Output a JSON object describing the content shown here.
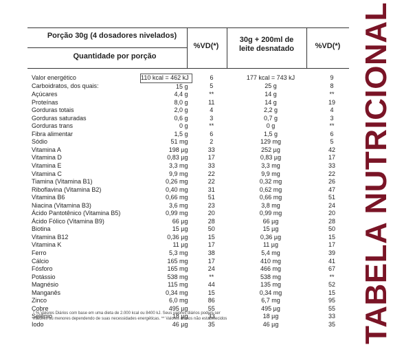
{
  "title": "TABELA NUTRICIONAL",
  "header": {
    "portion": "Porção 30g (4 dosadores nivelados)",
    "quantity": "Quantidade por porção",
    "vd1": "%VD(*)",
    "milk_line1": "30g + 200ml de",
    "milk_line2": "leite desnatado",
    "vd2": "%VD(*)"
  },
  "rows": [
    {
      "name": "Valor energético",
      "v1": "110 kcal = 462 kJ",
      "vd1": "6",
      "v2": "177 kcal = 743 kJ",
      "vd2": "9"
    },
    {
      "name": "Carboidratos, dos quais:",
      "v1": "15 g",
      "vd1": "5",
      "v2": "25 g",
      "vd2": "8"
    },
    {
      "name": "Açúcares",
      "v1": "4,4 g",
      "vd1": "**",
      "v2": "14 g",
      "vd2": "**"
    },
    {
      "name": "Proteínas",
      "v1": "8,0 g",
      "vd1": "11",
      "v2": "14 g",
      "vd2": "19"
    },
    {
      "name": "Gorduras totais",
      "v1": "2,0 g",
      "vd1": "4",
      "v2": "2,2 g",
      "vd2": "4"
    },
    {
      "name": "Gorduras saturadas",
      "v1": "0,6 g",
      "vd1": "3",
      "v2": "0,7 g",
      "vd2": "3"
    },
    {
      "name": "Gorduras trans",
      "v1": "0 g",
      "vd1": "**",
      "v2": "0 g",
      "vd2": "**"
    },
    {
      "name": "Fibra alimentar",
      "v1": "1,5 g",
      "vd1": "6",
      "v2": "1,5 g",
      "vd2": "6"
    },
    {
      "name": "Sódio",
      "v1": "51 mg",
      "vd1": "2",
      "v2": "129 mg",
      "vd2": "5"
    },
    {
      "name": "Vitamina A",
      "v1": "198 µg",
      "vd1": "33",
      "v2": "252 µg",
      "vd2": "42"
    },
    {
      "name": "Vitamina D",
      "v1": "0,83 µg",
      "vd1": "17",
      "v2": "0,83 µg",
      "vd2": "17"
    },
    {
      "name": "Vitamina E",
      "v1": "3,3 mg",
      "vd1": "33",
      "v2": "3,3 mg",
      "vd2": "33"
    },
    {
      "name": "Vitamina C",
      "v1": "9,9 mg",
      "vd1": "22",
      "v2": "9,9 mg",
      "vd2": "22"
    },
    {
      "name": "Tiamina (Vitamina B1)",
      "v1": "0,26 mg",
      "vd1": "22",
      "v2": "0,32 mg",
      "vd2": "26"
    },
    {
      "name": "Riboflavina (Vitamina B2)",
      "v1": "0,40 mg",
      "vd1": "31",
      "v2": "0,62 mg",
      "vd2": "47"
    },
    {
      "name": "Vitamina B6",
      "v1": "0,66 mg",
      "vd1": "51",
      "v2": "0,66 mg",
      "vd2": "51"
    },
    {
      "name": "Niacina (Vitamina B3)",
      "v1": "3,6 mg",
      "vd1": "23",
      "v2": "3,8 mg",
      "vd2": "24"
    },
    {
      "name": "Ácido Pantotênico (Vitamina B5)",
      "v1": "0,99 mg",
      "vd1": "20",
      "v2": "0,99 mg",
      "vd2": "20"
    },
    {
      "name": "Ácido Fólico (Vitamina B9)",
      "v1": "66 µg",
      "vd1": "28",
      "v2": "66 µg",
      "vd2": "28"
    },
    {
      "name": "Biotina",
      "v1": "15 µg",
      "vd1": "50",
      "v2": "15 µg",
      "vd2": "50"
    },
    {
      "name": "Vitamina B12",
      "v1": "0,36 µg",
      "vd1": "15",
      "v2": "0,36 µg",
      "vd2": "15"
    },
    {
      "name": "Vitamina K",
      "v1": "11 µg",
      "vd1": "17",
      "v2": "11 µg",
      "vd2": "17"
    },
    {
      "name": "Ferro",
      "v1": "5,3 mg",
      "vd1": "38",
      "v2": "5,4 mg",
      "vd2": "39"
    },
    {
      "name": "Cálcio",
      "v1": "165 mg",
      "vd1": "17",
      "v2": "410 mg",
      "vd2": "41"
    },
    {
      "name": "Fósforo",
      "v1": "165 mg",
      "vd1": "24",
      "v2": "466 mg",
      "vd2": "67"
    },
    {
      "name": "Potássio",
      "v1": "538 mg",
      "vd1": "**",
      "v2": "538 mg",
      "vd2": "**"
    },
    {
      "name": "Magnésio",
      "v1": "115 mg",
      "vd1": "44",
      "v2": "135 mg",
      "vd2": "52"
    },
    {
      "name": "Manganês",
      "v1": "0,34 mg",
      "vd1": "15",
      "v2": "0,34 mg",
      "vd2": "15"
    },
    {
      "name": "Zinco",
      "v1": "6,0 mg",
      "vd1": "86",
      "v2": "6,7 mg",
      "vd2": "95"
    },
    {
      "name": "Cobre",
      "v1": "495 µg",
      "vd1": "55",
      "v2": "495 µg",
      "vd2": "55"
    },
    {
      "name": "Selênio",
      "v1": "18 µg",
      "vd1": "33",
      "v2": "18 µg",
      "vd2": "33"
    },
    {
      "name": "Iodo",
      "v1": "46 µg",
      "vd1": "35",
      "v2": "46 µg",
      "vd2": "35"
    }
  ],
  "footnote_line1": "* % Valores Diários com base em uma dieta de 2.000 kcal ou 8400 kJ. Seus valores diários podem ser",
  "footnote_line2": "maiores ou menores dependendo de suas necessidades energéticas. ** Valores diários não estabelecidos",
  "colors": {
    "title": "#7a1426",
    "text": "#222222",
    "rule": "#333333"
  }
}
